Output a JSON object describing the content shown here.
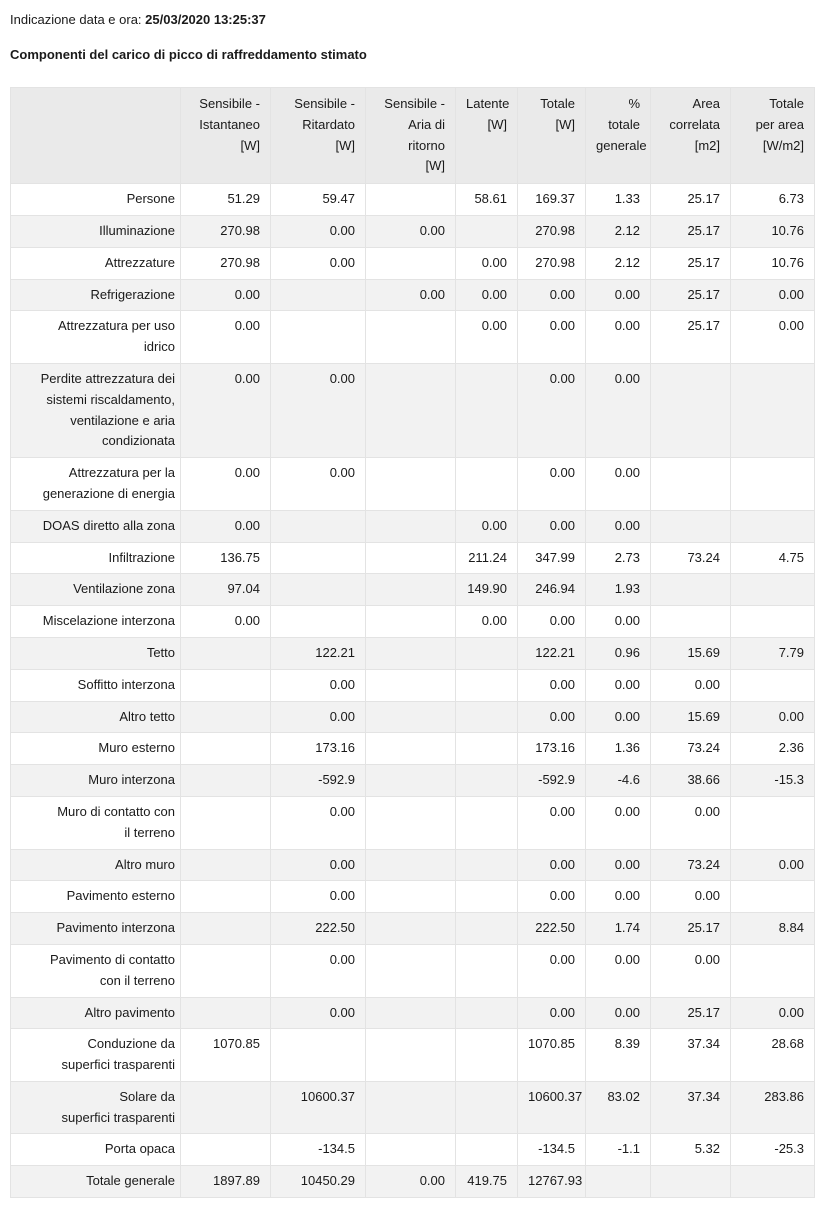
{
  "meta": {
    "timestamp_label": "Indicazione data e ora:",
    "timestamp_value": "25/03/2020 13:25:37"
  },
  "report": {
    "title": "Componenti del carico di picco di raffreddamento stimato"
  },
  "colors": {
    "header_background": "#eaeaea",
    "stripe_background": "#f2f2f2",
    "border": "#e3e3e3",
    "text": "#1a1a1a"
  },
  "table": {
    "columns": [
      "",
      "Sensibile -\nIstantaneo\n[W]",
      "Sensibile -\nRitardato\n[W]",
      "Sensibile -\nAria di ritorno\n[W]",
      "Latente\n[W]",
      "Totale\n[W]",
      "% totale\ngenerale",
      "Area\ncorrelata\n[m2]",
      "Totale\nper area\n[W/m2]"
    ],
    "rows": [
      {
        "label": "Persone",
        "values": [
          "51.29",
          "59.47",
          "",
          "58.61",
          "169.37",
          "1.33",
          "25.17",
          "6.73"
        ]
      },
      {
        "label": "Illuminazione",
        "values": [
          "270.98",
          "0.00",
          "0.00",
          "",
          "270.98",
          "2.12",
          "25.17",
          "10.76"
        ]
      },
      {
        "label": "Attrezzature",
        "values": [
          "270.98",
          "0.00",
          "",
          "0.00",
          "270.98",
          "2.12",
          "25.17",
          "10.76"
        ]
      },
      {
        "label": "Refrigerazione",
        "values": [
          "0.00",
          "",
          "0.00",
          "0.00",
          "0.00",
          "0.00",
          "25.17",
          "0.00"
        ]
      },
      {
        "label": "Attrezzatura per uso\nidrico",
        "values": [
          "0.00",
          "",
          "",
          "0.00",
          "0.00",
          "0.00",
          "25.17",
          "0.00"
        ]
      },
      {
        "label": "Perdite attrezzatura dei\nsistemi riscaldamento,\nventilazione e aria\ncondizionata",
        "values": [
          "0.00",
          "0.00",
          "",
          "",
          "0.00",
          "0.00",
          "",
          ""
        ]
      },
      {
        "label": "Attrezzatura per la\ngenerazione di energia",
        "values": [
          "0.00",
          "0.00",
          "",
          "",
          "0.00",
          "0.00",
          "",
          ""
        ]
      },
      {
        "label": "DOAS diretto alla zona",
        "values": [
          "0.00",
          "",
          "",
          "0.00",
          "0.00",
          "0.00",
          "",
          ""
        ]
      },
      {
        "label": "Infiltrazione",
        "values": [
          "136.75",
          "",
          "",
          "211.24",
          "347.99",
          "2.73",
          "73.24",
          "4.75"
        ]
      },
      {
        "label": "Ventilazione zona",
        "values": [
          "97.04",
          "",
          "",
          "149.90",
          "246.94",
          "1.93",
          "",
          ""
        ]
      },
      {
        "label": "Miscelazione interzona",
        "values": [
          "0.00",
          "",
          "",
          "0.00",
          "0.00",
          "0.00",
          "",
          ""
        ]
      },
      {
        "label": "Tetto",
        "values": [
          "",
          "122.21",
          "",
          "",
          "122.21",
          "0.96",
          "15.69",
          "7.79"
        ]
      },
      {
        "label": "Soffitto interzona",
        "values": [
          "",
          "0.00",
          "",
          "",
          "0.00",
          "0.00",
          "0.00",
          ""
        ]
      },
      {
        "label": "Altro tetto",
        "values": [
          "",
          "0.00",
          "",
          "",
          "0.00",
          "0.00",
          "15.69",
          "0.00"
        ]
      },
      {
        "label": "Muro esterno",
        "values": [
          "",
          "173.16",
          "",
          "",
          "173.16",
          "1.36",
          "73.24",
          "2.36"
        ]
      },
      {
        "label": "Muro interzona",
        "values": [
          "",
          "-592.9",
          "",
          "",
          "-592.9",
          "-4.6",
          "38.66",
          "-15.3"
        ]
      },
      {
        "label": "Muro di contatto con\nil terreno",
        "values": [
          "",
          "0.00",
          "",
          "",
          "0.00",
          "0.00",
          "0.00",
          ""
        ]
      },
      {
        "label": "Altro muro",
        "values": [
          "",
          "0.00",
          "",
          "",
          "0.00",
          "0.00",
          "73.24",
          "0.00"
        ]
      },
      {
        "label": "Pavimento esterno",
        "values": [
          "",
          "0.00",
          "",
          "",
          "0.00",
          "0.00",
          "0.00",
          ""
        ]
      },
      {
        "label": "Pavimento interzona",
        "values": [
          "",
          "222.50",
          "",
          "",
          "222.50",
          "1.74",
          "25.17",
          "8.84"
        ]
      },
      {
        "label": "Pavimento di contatto\ncon il terreno",
        "values": [
          "",
          "0.00",
          "",
          "",
          "0.00",
          "0.00",
          "0.00",
          ""
        ]
      },
      {
        "label": "Altro pavimento",
        "values": [
          "",
          "0.00",
          "",
          "",
          "0.00",
          "0.00",
          "25.17",
          "0.00"
        ]
      },
      {
        "label": "Conduzione da\nsuperfici trasparenti",
        "values": [
          "1070.85",
          "",
          "",
          "",
          "1070.85",
          "8.39",
          "37.34",
          "28.68"
        ]
      },
      {
        "label": "Solare da\nsuperfici trasparenti",
        "values": [
          "",
          "10600.37",
          "",
          "",
          "10600.37",
          "83.02",
          "37.34",
          "283.86"
        ]
      },
      {
        "label": "Porta opaca",
        "values": [
          "",
          "-134.5",
          "",
          "",
          "-134.5",
          "-1.1",
          "5.32",
          "-25.3"
        ]
      },
      {
        "label": "Totale generale",
        "values": [
          "1897.89",
          "10450.29",
          "0.00",
          "419.75",
          "12767.93",
          "",
          "",
          ""
        ]
      }
    ]
  }
}
